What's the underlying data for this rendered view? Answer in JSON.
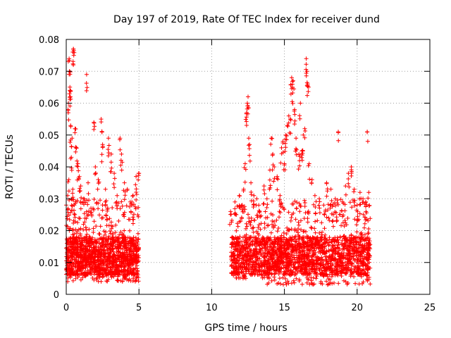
{
  "colors": {
    "points": "#ff0000",
    "grid": "#a0a0a0",
    "axis": "#000000"
  },
  "chart_data": {
    "type": "scatter",
    "title": "Day 197 of 2019, Rate Of TEC Index for receiver dund",
    "xlabel": "GPS time / hours",
    "ylabel": "ROTI / TECUs",
    "xlim": [
      0,
      25
    ],
    "ylim": [
      0,
      0.08
    ],
    "xticks": [
      0,
      5,
      10,
      15,
      20,
      25
    ],
    "xtick_labels": [
      "0",
      "5",
      "10",
      "15",
      "20",
      "25"
    ],
    "yticks": [
      0,
      0.01,
      0.02,
      0.03,
      0.04,
      0.05,
      0.06,
      0.07,
      0.08
    ],
    "ytick_labels": [
      "0",
      "0.01",
      "0.02",
      "0.03",
      "0.04",
      "0.05",
      "0.06",
      "0.07",
      "0.08"
    ],
    "grid": true,
    "marker": "+",
    "series": [
      {
        "name": "ROTI",
        "points": [
          [
            0.05,
            0.016
          ],
          [
            0.1,
            0.031
          ],
          [
            0.15,
            0.06
          ],
          [
            0.18,
            0.036
          ],
          [
            0.2,
            0.074
          ],
          [
            0.22,
            0.07
          ],
          [
            0.25,
            0.064
          ],
          [
            0.28,
            0.062
          ],
          [
            0.3,
            0.053
          ],
          [
            0.35,
            0.043
          ],
          [
            0.4,
            0.049
          ],
          [
            0.45,
            0.033
          ],
          [
            0.5,
            0.077
          ],
          [
            0.52,
            0.075
          ],
          [
            0.55,
            0.028
          ],
          [
            0.6,
            0.052
          ],
          [
            0.7,
            0.046
          ],
          [
            0.8,
            0.041
          ],
          [
            0.9,
            0.037
          ],
          [
            1.0,
            0.034
          ],
          [
            1.2,
            0.03
          ],
          [
            1.4,
            0.069
          ],
          [
            1.5,
            0.035
          ],
          [
            1.7,
            0.027
          ],
          [
            1.9,
            0.054
          ],
          [
            2.0,
            0.04
          ],
          [
            2.2,
            0.036
          ],
          [
            2.4,
            0.055
          ],
          [
            2.5,
            0.047
          ],
          [
            2.7,
            0.033
          ],
          [
            2.9,
            0.049
          ],
          [
            3.1,
            0.044
          ],
          [
            3.3,
            0.038
          ],
          [
            3.5,
            0.031
          ],
          [
            3.7,
            0.049
          ],
          [
            3.8,
            0.044
          ],
          [
            4.0,
            0.035
          ],
          [
            4.2,
            0.033
          ],
          [
            4.4,
            0.029
          ],
          [
            4.6,
            0.031
          ],
          [
            4.8,
            0.037
          ],
          [
            5.0,
            0.038
          ],
          [
            11.3,
            0.026
          ],
          [
            11.6,
            0.029
          ],
          [
            11.9,
            0.031
          ],
          [
            12.1,
            0.028
          ],
          [
            12.2,
            0.033
          ],
          [
            12.3,
            0.041
          ],
          [
            12.4,
            0.057
          ],
          [
            12.45,
            0.06
          ],
          [
            12.5,
            0.062
          ],
          [
            12.55,
            0.049
          ],
          [
            12.6,
            0.047
          ],
          [
            12.7,
            0.035
          ],
          [
            12.9,
            0.031
          ],
          [
            13.1,
            0.03
          ],
          [
            13.3,
            0.026
          ],
          [
            13.6,
            0.034
          ],
          [
            13.8,
            0.03
          ],
          [
            14.0,
            0.039
          ],
          [
            14.1,
            0.049
          ],
          [
            14.2,
            0.044
          ],
          [
            14.3,
            0.04
          ],
          [
            14.5,
            0.037
          ],
          [
            14.7,
            0.031
          ],
          [
            14.8,
            0.046
          ],
          [
            14.9,
            0.048
          ],
          [
            15.0,
            0.041
          ],
          [
            15.1,
            0.05
          ],
          [
            15.2,
            0.053
          ],
          [
            15.3,
            0.056
          ],
          [
            15.4,
            0.055
          ],
          [
            15.5,
            0.068
          ],
          [
            15.55,
            0.065
          ],
          [
            15.6,
            0.067
          ],
          [
            15.7,
            0.058
          ],
          [
            15.8,
            0.049
          ],
          [
            16.0,
            0.044
          ],
          [
            16.1,
            0.06
          ],
          [
            16.2,
            0.045
          ],
          [
            16.3,
            0.05
          ],
          [
            16.4,
            0.052
          ],
          [
            16.5,
            0.074
          ],
          [
            16.55,
            0.07
          ],
          [
            16.6,
            0.066
          ],
          [
            16.7,
            0.041
          ],
          [
            16.9,
            0.036
          ],
          [
            17.1,
            0.031
          ],
          [
            17.4,
            0.03
          ],
          [
            17.7,
            0.028
          ],
          [
            17.9,
            0.035
          ],
          [
            18.2,
            0.033
          ],
          [
            18.5,
            0.03
          ],
          [
            18.7,
            0.051
          ],
          [
            19.0,
            0.029
          ],
          [
            19.2,
            0.034
          ],
          [
            19.4,
            0.038
          ],
          [
            19.6,
            0.04
          ],
          [
            19.8,
            0.033
          ],
          [
            20.0,
            0.028
          ],
          [
            20.2,
            0.032
          ],
          [
            20.4,
            0.03
          ],
          [
            20.6,
            0.029
          ],
          [
            20.7,
            0.051
          ],
          [
            20.8,
            0.032
          ]
        ],
        "clusters": [
          {
            "x_range": [
              0.0,
              5.0
            ],
            "y_range": [
              0.004,
              0.03
            ],
            "count": 1400,
            "peak_y": 0.012
          },
          {
            "x_range": [
              11.3,
              13.7
            ],
            "y_range": [
              0.005,
              0.028
            ],
            "count": 500,
            "peak_y": 0.012
          },
          {
            "x_range": [
              13.7,
              20.9
            ],
            "y_range": [
              0.003,
              0.03
            ],
            "count": 1600,
            "peak_y": 0.012
          }
        ]
      }
    ]
  }
}
